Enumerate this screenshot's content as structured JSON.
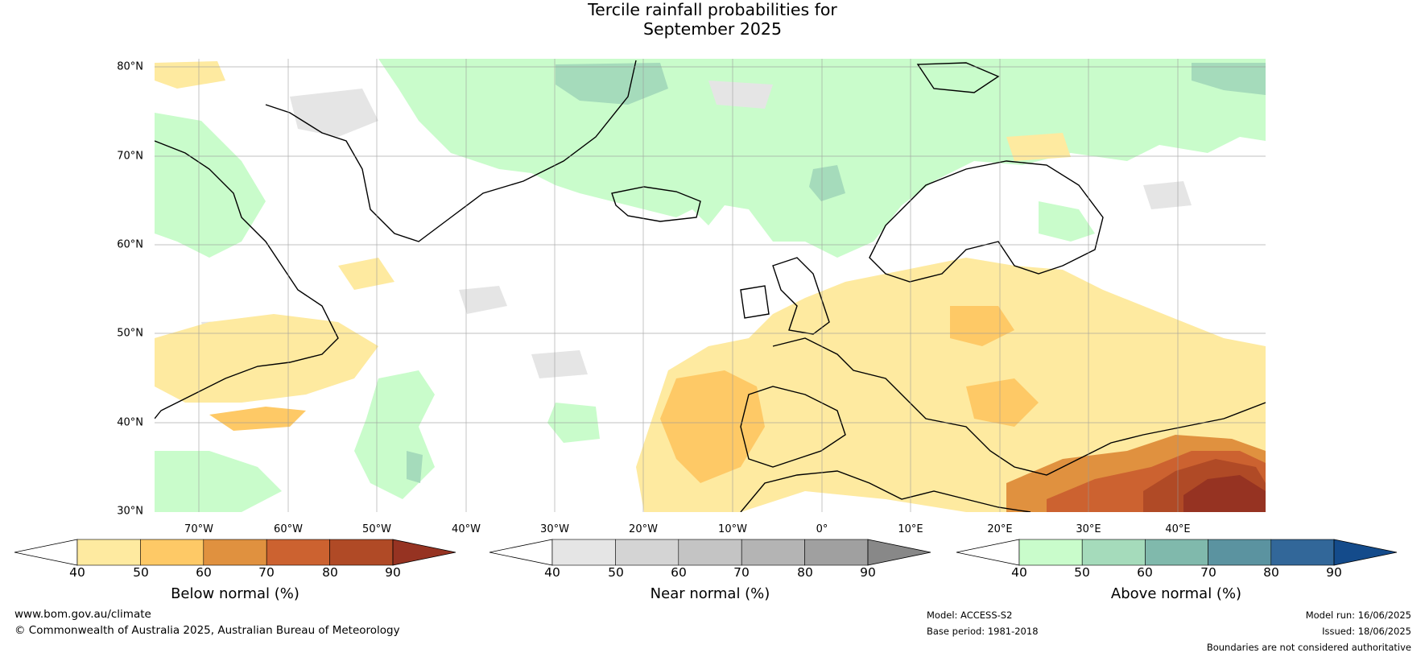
{
  "title": {
    "line1": "Tercile rainfall probabilities for",
    "line2": "September 2025"
  },
  "map": {
    "lat_labels": [
      "80°N",
      "70°N",
      "60°N",
      "50°N",
      "40°N",
      "30°N"
    ],
    "lon_labels": [
      "70°W",
      "60°W",
      "50°W",
      "40°W",
      "30°W",
      "20°W",
      "10°W",
      "0°",
      "10°E",
      "20°E",
      "30°E",
      "40°E"
    ],
    "lat_range": [
      30,
      81
    ],
    "lon_range": [
      -75,
      50
    ],
    "ocean_color": "#ffffff",
    "coast_color": "#000000",
    "border_color": "#888888",
    "grid_color": "#999999"
  },
  "colorbars": [
    {
      "name": "below",
      "label": "Below normal (%)",
      "ticks": [
        "40",
        "50",
        "60",
        "70",
        "80",
        "90"
      ],
      "colors": [
        "#ffffff",
        "#feeaa0",
        "#fec966",
        "#e0913f",
        "#cc6230",
        "#b04a26",
        "#963322"
      ]
    },
    {
      "name": "near",
      "label": "Near normal (%)",
      "ticks": [
        "40",
        "50",
        "60",
        "70",
        "80",
        "90"
      ],
      "colors": [
        "#ffffff",
        "#e5e5e5",
        "#d4d4d4",
        "#c4c4c4",
        "#b4b4b4",
        "#a0a0a0",
        "#888888"
      ]
    },
    {
      "name": "above",
      "label": "Above normal (%)",
      "ticks": [
        "40",
        "50",
        "60",
        "70",
        "80",
        "90"
      ],
      "colors": [
        "#ffffff",
        "#c9fccb",
        "#a5dbbb",
        "#80b9ac",
        "#5b93a0",
        "#326799",
        "#144b8b"
      ]
    }
  ],
  "footer": {
    "website": "www.bom.gov.au/climate",
    "copyright": "© Commonwealth of Australia 2025, Australian Bureau of Meteorology",
    "model": "Model: ACCESS-S2",
    "base_period": "Base period: 1981-2018",
    "model_run": "Model run: 16/06/2025",
    "issued": "Issued: 18/06/2025",
    "disclaimer": "Boundaries are not considered authoritative"
  }
}
